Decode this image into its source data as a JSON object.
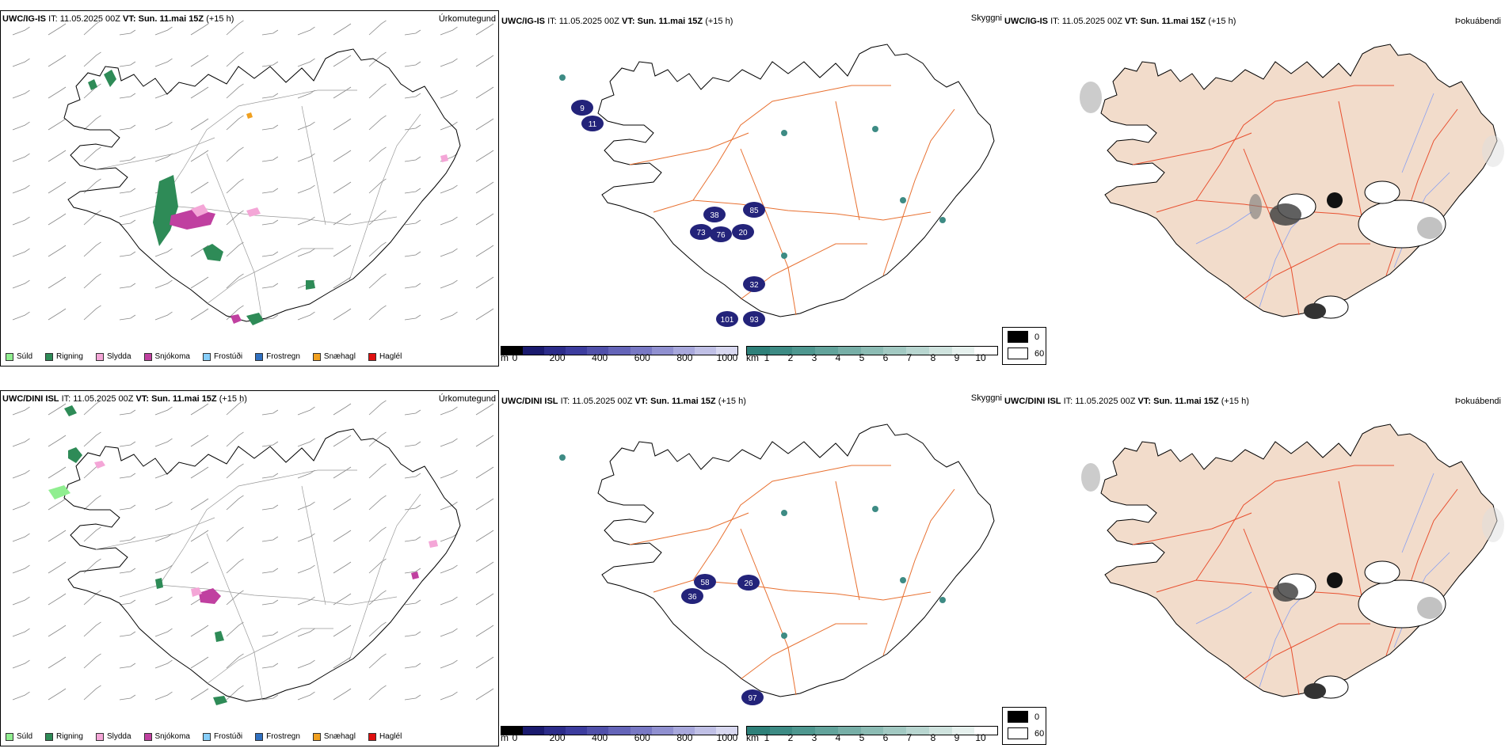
{
  "rows": [
    {
      "panels": [
        {
          "model": "UWC/IG-IS",
          "it": "IT: 11.05.2025 00Z",
          "vt_label": "VT:",
          "vt": "Sun. 11.mai 15Z",
          "lead": "(+15 h)",
          "title": "Úrkomutegund"
        },
        {
          "model": "UWC/IG-IS",
          "it": "IT: 11.05.2025 00Z",
          "vt_label": "VT:",
          "vt": "Sun. 11.mai 15Z",
          "lead": "(+15 h)",
          "title": "Skyggni"
        },
        {
          "model": "UWC/IG-IS",
          "it": "IT: 11.05.2025 00Z",
          "vt_label": "VT:",
          "vt": "Sun. 11.mai 15Z",
          "lead": "(+15 h)",
          "title": "Þokuábendi"
        }
      ],
      "visibility_labels": [
        "9",
        "11",
        "38",
        "85",
        "73",
        "76",
        "20",
        "32",
        "101",
        "93"
      ]
    },
    {
      "panels": [
        {
          "model": "UWC/DINI ISL",
          "it": "IT: 11.05.2025 00Z",
          "vt_label": "VT:",
          "vt": "Sun. 11.mai 15Z",
          "lead": "(+15 h)",
          "title": "Úrkomutegund"
        },
        {
          "model": "UWC/DINI ISL",
          "it": "IT: 11.05.2025 00Z",
          "vt_label": "VT:",
          "vt": "Sun. 11.mai 15Z",
          "lead": "(+15 h)",
          "title": "Skyggni"
        },
        {
          "model": "UWC/DINI ISL",
          "it": "IT: 11.05.2025 00Z",
          "vt_label": "VT:",
          "vt": "Sun. 11.mai 15Z",
          "lead": "(+15 h)",
          "title": "Þokuábendi"
        }
      ],
      "visibility_labels": [
        "26",
        "36",
        "58",
        "97"
      ]
    }
  ],
  "precip_legend": [
    {
      "label": "Súld",
      "color": "#90ee90"
    },
    {
      "label": "Rigning",
      "color": "#2e8b57"
    },
    {
      "label": "Slydda",
      "color": "#f4a6d7"
    },
    {
      "label": "Snjókoma",
      "color": "#c040a0"
    },
    {
      "label": "Frostúði",
      "color": "#87cefa"
    },
    {
      "label": "Frostregn",
      "color": "#3070c0"
    },
    {
      "label": "Snæhagl",
      "color": "#f0a020"
    },
    {
      "label": "Haglél",
      "color": "#e01010"
    }
  ],
  "height_scale": {
    "unit": "m",
    "ticks": [
      "0",
      "200",
      "400",
      "600",
      "800",
      "1000"
    ],
    "colors": [
      "#000000",
      "#1a1a6e",
      "#2c2c8a",
      "#3c3c9e",
      "#5050aa",
      "#6464b8",
      "#7878c4",
      "#9090d0",
      "#a8a8dc",
      "#c0c0e6",
      "#d8d8f0"
    ]
  },
  "km_scale": {
    "unit": "km",
    "ticks": [
      "1",
      "2",
      "3",
      "4",
      "5",
      "6",
      "7",
      "8",
      "9",
      "10"
    ],
    "colors": [
      "#2e8079",
      "#3d8b84",
      "#4e978f",
      "#62a39b",
      "#77afa7",
      "#8cbcb4",
      "#a2c9c2",
      "#b8d6d0",
      "#cfe3de",
      "#e6f1ee",
      "#ffffff"
    ]
  },
  "fog_legend": [
    {
      "label": "0",
      "color": "#000000"
    },
    {
      "label": "60",
      "color": "#ffffff"
    }
  ],
  "colors": {
    "land_fill": "#f2dccb",
    "roads": "#e87030",
    "rivers": "#8aa0f0",
    "coast": "#000000",
    "rain": "#2e8b57",
    "snow": "#c040a0",
    "sleet": "#f4a6d7",
    "vis_blue": "#23237a",
    "vis_teal": "#3d8b84"
  }
}
